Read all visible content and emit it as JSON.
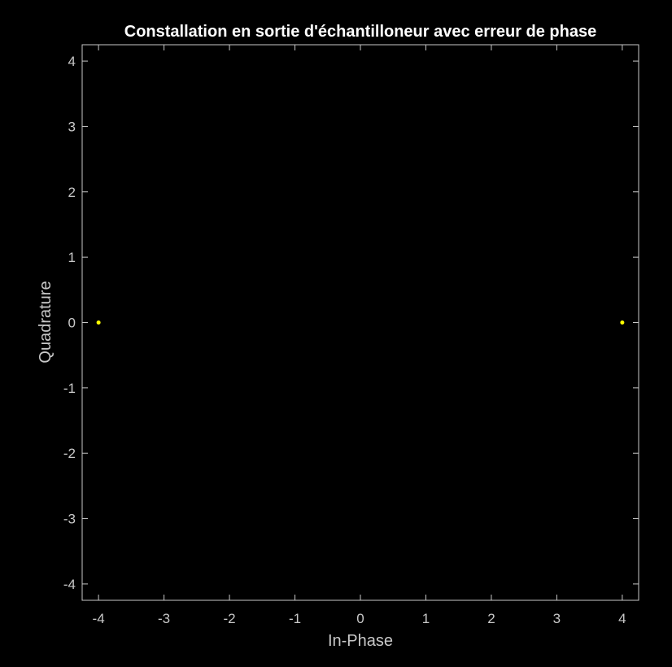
{
  "chart_data": {
    "type": "scatter",
    "title": "Constallation en sortie d'échantilloneur avec erreur de phase",
    "xlabel": "In-Phase",
    "ylabel": "Quadrature",
    "xlim": [
      -4.25,
      4.25
    ],
    "ylim": [
      -4.25,
      4.25
    ],
    "xticks": [
      -4,
      -3,
      -2,
      -1,
      0,
      1,
      2,
      3,
      4
    ],
    "yticks": [
      -4,
      -3,
      -2,
      -1,
      0,
      1,
      2,
      3,
      4
    ],
    "grid": false,
    "series": [
      {
        "x": [
          -4,
          4
        ],
        "y": [
          0,
          0
        ],
        "color": "#ffff00"
      }
    ]
  },
  "colors": {
    "background": "#000000",
    "axes": "#c8c8c8",
    "title": "#ffffff",
    "marker": "#ffff00"
  }
}
